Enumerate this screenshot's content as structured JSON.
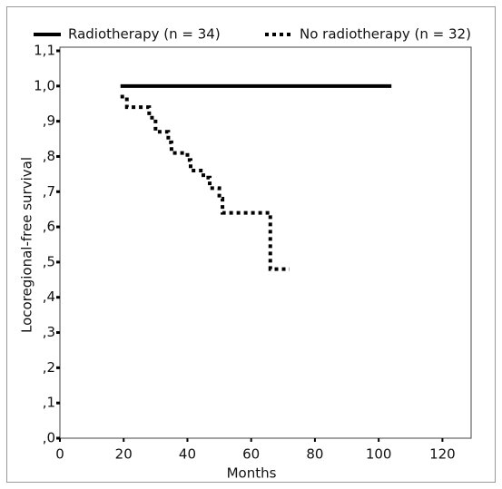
{
  "chart_data": {
    "type": "line",
    "x_label": "Months",
    "y_label": "Locoregional-free survival",
    "series": [
      {
        "name": "Radiotherapy (n = 34)",
        "color": "#000000",
        "linestyle": "solid",
        "x": [
          19,
          104
        ],
        "values": [
          1.0,
          1.0
        ]
      },
      {
        "name": "No radiotherapy (n = 32)",
        "color": "#000000",
        "linestyle": "dotted",
        "x": [
          19,
          21,
          28,
          30,
          34,
          35,
          40,
          41,
          45,
          47,
          50,
          51,
          66,
          72
        ],
        "values": [
          0.97,
          0.94,
          0.91,
          0.87,
          0.84,
          0.81,
          0.79,
          0.76,
          0.74,
          0.71,
          0.68,
          0.64,
          0.48,
          0.48
        ]
      }
    ],
    "xlim": [
      0,
      129
    ],
    "ylim": [
      0,
      1.1
    ],
    "xticks": [
      0,
      20,
      40,
      60,
      80,
      100,
      120
    ],
    "yticks": [
      {
        "value": 0,
        "label": ",0"
      },
      {
        "value": 0.1,
        "label": ",1"
      },
      {
        "value": 0.2,
        "label": ",2"
      },
      {
        "value": 0.3,
        "label": ",3"
      },
      {
        "value": 0.4,
        "label": ",4"
      },
      {
        "value": 0.5,
        "label": ",5"
      },
      {
        "value": 0.6,
        "label": ",6"
      },
      {
        "value": 0.7,
        "label": ",7"
      },
      {
        "value": 0.8,
        "label": ",8"
      },
      {
        "value": 0.9,
        "label": ",9"
      },
      {
        "value": 1.0,
        "label": "1,0"
      },
      {
        "value": 1.1,
        "label": "1,1"
      }
    ],
    "step": true
  }
}
